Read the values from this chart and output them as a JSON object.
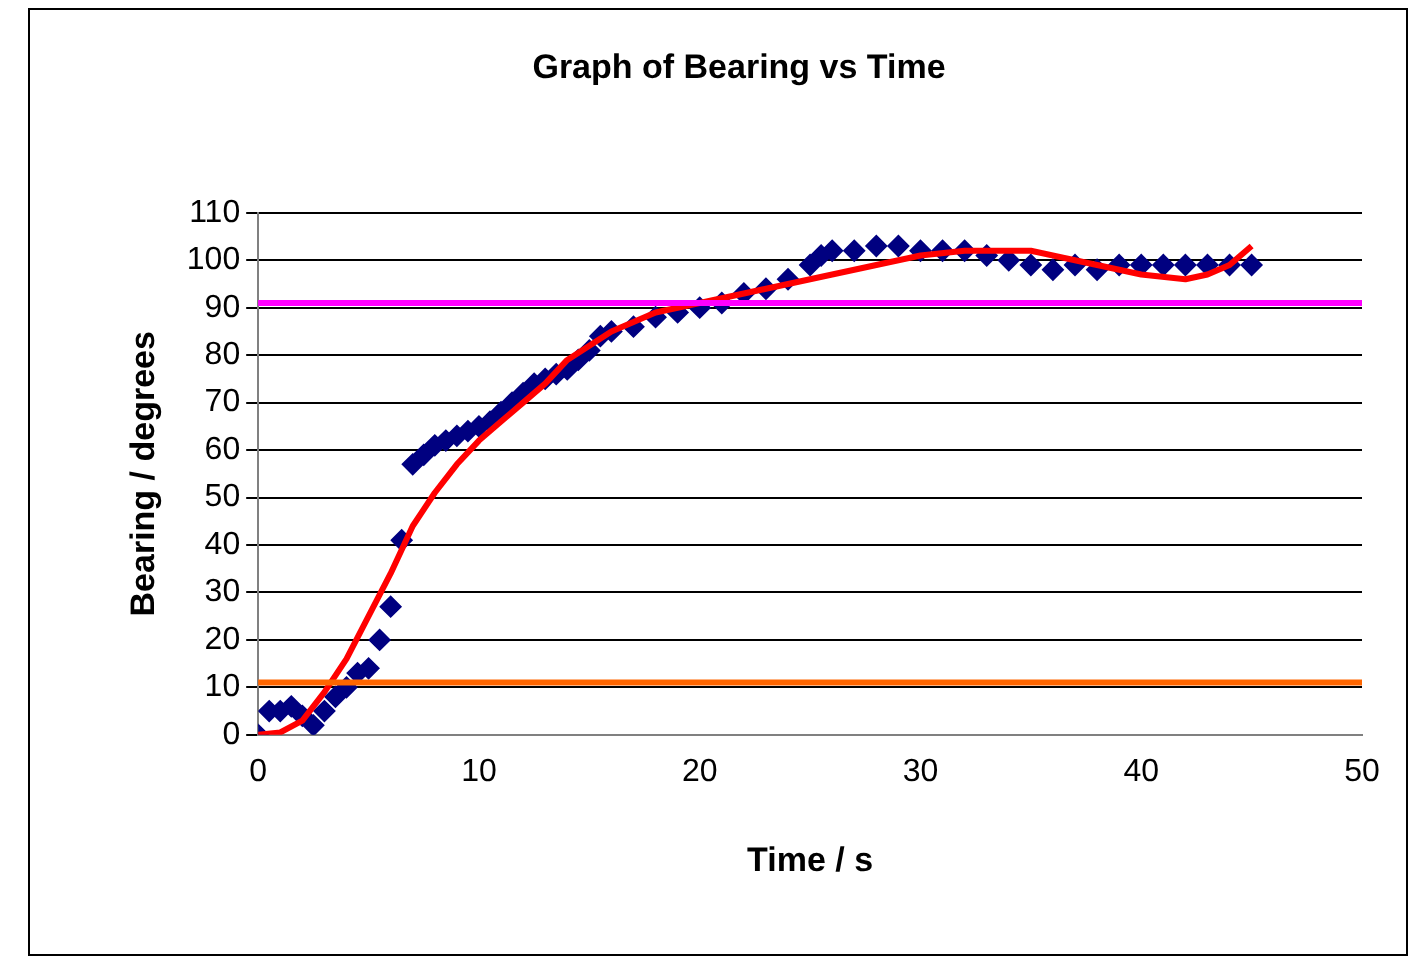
{
  "chart_data": {
    "type": "scatter",
    "title": "Graph of Bearing vs Time",
    "xlabel": "Time / s",
    "ylabel": "Bearing / degrees",
    "xlim": [
      0,
      50
    ],
    "xticks": [
      0,
      10,
      20,
      30,
      40,
      50
    ],
    "ylim": [
      0,
      110
    ],
    "yticks": [
      0,
      10,
      20,
      30,
      40,
      50,
      60,
      70,
      80,
      90,
      100,
      110
    ],
    "grid": "y",
    "marker": "diamond",
    "series": [
      {
        "color": "#000080",
        "x": [
          0,
          0.5,
          1,
          1.5,
          2,
          2.5,
          3,
          3.5,
          4,
          4.5,
          5,
          5.5,
          6,
          6.5,
          7,
          7.5,
          8,
          8.5,
          9,
          9.5,
          10,
          10.5,
          11,
          11.5,
          12,
          12.5,
          13,
          13.5,
          14,
          14.5,
          15,
          15.5,
          16,
          17,
          18,
          19,
          20,
          21,
          22,
          23,
          24,
          25,
          25.5,
          26,
          27,
          28,
          29,
          30,
          31,
          32,
          33,
          34,
          35,
          36,
          37,
          38,
          39,
          40,
          41,
          42,
          43,
          44,
          45
        ],
        "values": [
          0,
          5,
          5,
          6,
          4,
          2,
          5,
          8,
          10,
          13,
          14,
          20,
          27,
          41,
          57,
          59,
          61,
          62,
          63,
          64,
          65,
          66,
          68,
          70,
          72,
          74,
          75,
          76,
          77,
          79,
          81,
          84,
          85,
          86,
          88,
          89,
          90,
          91,
          93,
          94,
          96,
          99,
          101,
          102,
          102,
          103,
          103,
          102,
          102,
          102,
          101,
          100,
          99,
          98,
          99,
          98,
          99,
          99,
          99,
          99,
          99,
          99,
          99
        ]
      },
      {
        "type": "line",
        "color": "#ff0000",
        "marker": "none",
        "x": [
          0,
          1,
          2,
          3,
          4,
          5,
          6,
          7,
          8,
          9,
          10,
          11,
          12,
          13,
          14,
          15,
          16,
          17,
          18,
          20,
          22,
          24,
          26,
          28,
          30,
          32,
          35,
          37,
          40,
          42,
          43,
          44,
          45
        ],
        "values": [
          0,
          0.5,
          3,
          9,
          16,
          25,
          34,
          44,
          51,
          57,
          62,
          66,
          70,
          74,
          79,
          82,
          85,
          87,
          89,
          91,
          93,
          95,
          97,
          99,
          101,
          102,
          102,
          100,
          97,
          96,
          97,
          99,
          103
        ]
      }
    ],
    "ref_lines": [
      {
        "axis": "y",
        "value": 91,
        "color": "#ff00ff"
      },
      {
        "axis": "y",
        "value": 11,
        "color": "#ff6600"
      }
    ]
  }
}
